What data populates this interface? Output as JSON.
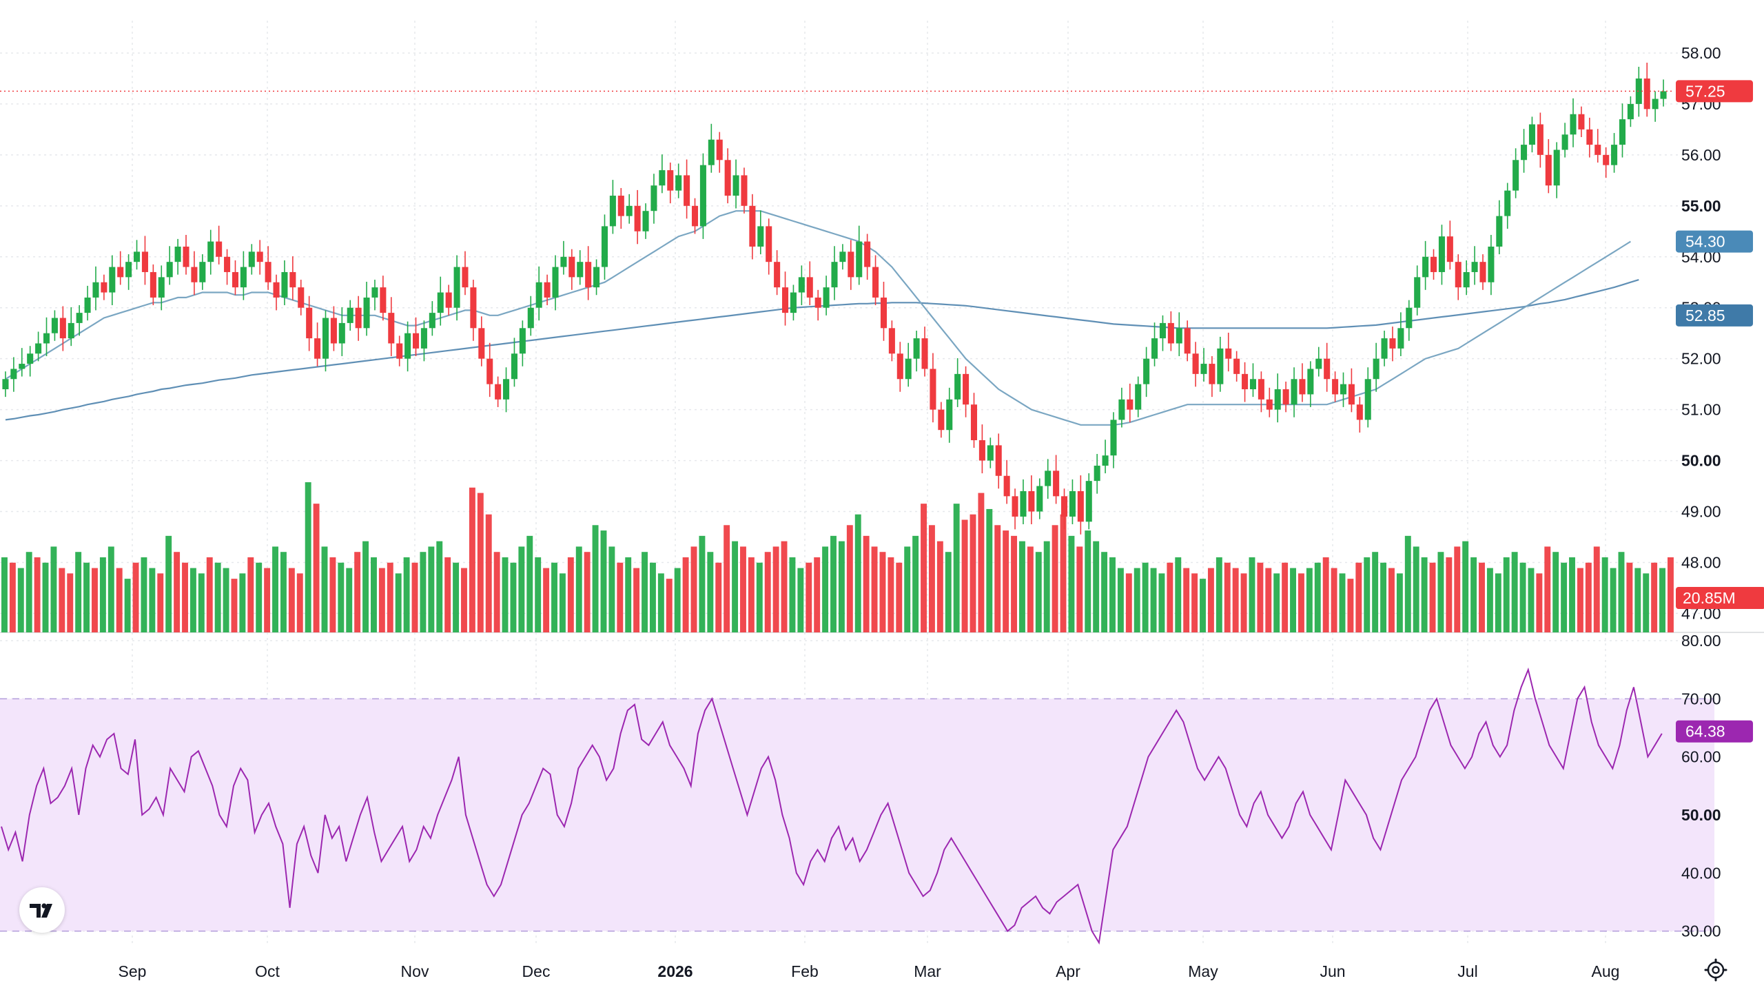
{
  "colors": {
    "up": "#26a69a",
    "up_candle": "#22ab4a",
    "down": "#ef3a3f",
    "ma_fast": "#7aa6c2",
    "ma_slow": "#5f8fb5",
    "rsi": "#9c27b0",
    "rsi_band": "#f3e5fb",
    "grid": "#e6e8ec",
    "text": "#131722",
    "price_line": "#ef3a3f"
  },
  "icons": {
    "logo": "tradingview-logo-icon",
    "settings": "gear-icon"
  },
  "chart_data": [
    {
      "type": "candlestick",
      "panel": "price",
      "y_ticks": [
        "47.00",
        "48.00",
        "49.00",
        "50.00",
        "51.00",
        "52.00",
        "53.00",
        "54.00",
        "55.00",
        "56.00",
        "57.00",
        "58.00"
      ],
      "bold_ticks": [
        "50.00",
        "55.00"
      ],
      "ylim": [
        46.6,
        58.5
      ],
      "x_tick_labels": [
        "Sep",
        "Oct",
        "Nov",
        "Dec",
        "2026",
        "Feb",
        "Mar",
        "Apr",
        "May",
        "Jun",
        "Jul",
        "Aug"
      ],
      "bold_x_ticks": [
        "2026"
      ],
      "grid": true,
      "close_series": [
        51.6,
        51.8,
        51.9,
        52.1,
        52.3,
        52.5,
        52.8,
        52.4,
        52.7,
        52.9,
        53.2,
        53.5,
        53.3,
        53.8,
        53.6,
        53.9,
        54.1,
        53.7,
        53.2,
        53.6,
        53.9,
        54.2,
        53.8,
        53.5,
        53.9,
        54.3,
        54.0,
        53.7,
        53.4,
        53.8,
        54.1,
        53.9,
        53.5,
        53.2,
        53.7,
        53.4,
        53.0,
        52.4,
        52.0,
        52.8,
        52.3,
        52.7,
        53.0,
        52.6,
        53.2,
        53.4,
        52.9,
        52.3,
        52.0,
        52.5,
        52.2,
        52.6,
        52.9,
        53.3,
        53.0,
        53.8,
        53.4,
        52.6,
        52.0,
        51.5,
        51.2,
        51.6,
        52.1,
        52.6,
        53.0,
        53.5,
        53.2,
        53.8,
        54.0,
        53.6,
        53.9,
        53.4,
        53.8,
        54.6,
        55.2,
        54.8,
        55.0,
        54.5,
        54.9,
        55.4,
        55.7,
        55.3,
        55.6,
        55.0,
        54.6,
        55.8,
        56.3,
        55.9,
        55.2,
        55.6,
        55.0,
        54.2,
        54.6,
        53.9,
        53.4,
        52.9,
        53.3,
        53.6,
        53.2,
        53.0,
        53.4,
        53.9,
        54.1,
        53.6,
        54.3,
        53.8,
        53.2,
        52.6,
        52.1,
        51.6,
        52.0,
        52.4,
        51.8,
        51.0,
        50.6,
        51.2,
        51.7,
        51.1,
        50.4,
        50.0,
        50.3,
        49.7,
        49.3,
        48.9,
        49.4,
        49.0,
        49.5,
        49.8,
        49.3,
        48.9,
        49.4,
        48.8,
        49.6,
        49.9,
        50.1,
        50.8,
        51.2,
        51.0,
        51.5,
        52.0,
        52.4,
        52.7,
        52.3,
        52.6,
        52.1,
        51.7,
        51.9,
        51.5,
        52.2,
        52.0,
        51.7,
        51.4,
        51.6,
        51.2,
        51.0,
        51.4,
        51.1,
        51.6,
        51.3,
        51.8,
        52.0,
        51.6,
        51.3,
        51.5,
        51.1,
        50.8,
        51.6,
        52.0,
        52.4,
        52.2,
        52.6,
        53.0,
        53.6,
        54.0,
        53.7,
        54.4,
        53.9,
        53.4,
        53.7,
        53.9,
        53.5,
        54.2,
        54.8,
        55.3,
        55.9,
        56.2,
        56.6,
        56.0,
        55.4,
        56.1,
        56.4,
        56.8,
        56.5,
        56.2,
        56.0,
        55.8,
        56.2,
        56.7,
        57.0,
        57.5,
        56.9,
        57.1,
        57.25
      ],
      "ma_fast_series": [
        51.6,
        51.7,
        51.8,
        51.9,
        52.0,
        52.1,
        52.2,
        52.3,
        52.4,
        52.5,
        52.6,
        52.7,
        52.8,
        52.85,
        52.9,
        52.95,
        53.0,
        53.05,
        53.1,
        53.1,
        53.15,
        53.2,
        53.2,
        53.25,
        53.3,
        53.3,
        53.3,
        53.3,
        53.25,
        53.25,
        53.3,
        53.3,
        53.3,
        53.25,
        53.2,
        53.15,
        53.1,
        53.05,
        53.0,
        52.95,
        52.9,
        52.85,
        52.85,
        52.85,
        52.85,
        52.85,
        52.8,
        52.75,
        52.7,
        52.65,
        52.65,
        52.7,
        52.75,
        52.8,
        52.85,
        52.9,
        52.95,
        52.95,
        52.9,
        52.85,
        52.85,
        52.9,
        52.95,
        53.0,
        53.05,
        53.1,
        53.15,
        53.2,
        53.25,
        53.3,
        53.35,
        53.4,
        53.45,
        53.5,
        53.6,
        53.7,
        53.8,
        53.9,
        54.0,
        54.1,
        54.2,
        54.3,
        54.4,
        54.45,
        54.5,
        54.6,
        54.7,
        54.8,
        54.85,
        54.9,
        54.9,
        54.9,
        54.9,
        54.85,
        54.8,
        54.75,
        54.7,
        54.65,
        54.6,
        54.55,
        54.5,
        54.45,
        54.4,
        54.35,
        54.3,
        54.2,
        54.1,
        53.95,
        53.8,
        53.6,
        53.4,
        53.2,
        53.0,
        52.8,
        52.6,
        52.4,
        52.2,
        52.0,
        51.85,
        51.7,
        51.55,
        51.4,
        51.3,
        51.2,
        51.1,
        51.0,
        50.95,
        50.9,
        50.85,
        50.8,
        50.75,
        50.7,
        50.7,
        50.7,
        50.7,
        50.7,
        50.72,
        50.75,
        50.8,
        50.85,
        50.9,
        50.95,
        51.0,
        51.05,
        51.1,
        51.1,
        51.1,
        51.1,
        51.1,
        51.1,
        51.1,
        51.1,
        51.1,
        51.1,
        51.1,
        51.1,
        51.1,
        51.1,
        51.1,
        51.1,
        51.1,
        51.1,
        51.15,
        51.2,
        51.25,
        51.3,
        51.35,
        51.4,
        51.5,
        51.6,
        51.7,
        51.8,
        51.9,
        52.0,
        52.05,
        52.1,
        52.15,
        52.2,
        52.3,
        52.4,
        52.5,
        52.6,
        52.7,
        52.8,
        52.9,
        53.0,
        53.1,
        53.2,
        53.3,
        53.4,
        53.5,
        53.6,
        53.7,
        53.8,
        53.9,
        54.0,
        54.1,
        54.2,
        54.3
      ],
      "ma_slow_series": [
        50.8,
        50.82,
        50.85,
        50.88,
        50.9,
        50.93,
        50.96,
        51.0,
        51.03,
        51.06,
        51.1,
        51.13,
        51.16,
        51.2,
        51.23,
        51.26,
        51.3,
        51.33,
        51.36,
        51.4,
        51.42,
        51.45,
        51.48,
        51.5,
        51.52,
        51.55,
        51.58,
        51.6,
        51.62,
        51.65,
        51.68,
        51.7,
        51.72,
        51.74,
        51.76,
        51.78,
        51.8,
        51.82,
        51.84,
        51.86,
        51.88,
        51.9,
        51.92,
        51.94,
        51.96,
        51.98,
        52.0,
        52.02,
        52.04,
        52.06,
        52.08,
        52.1,
        52.12,
        52.14,
        52.16,
        52.18,
        52.2,
        52.22,
        52.24,
        52.26,
        52.28,
        52.3,
        52.32,
        52.34,
        52.36,
        52.38,
        52.4,
        52.42,
        52.44,
        52.46,
        52.48,
        52.5,
        52.52,
        52.54,
        52.56,
        52.58,
        52.6,
        52.62,
        52.64,
        52.66,
        52.68,
        52.7,
        52.72,
        52.74,
        52.76,
        52.78,
        52.8,
        52.82,
        52.84,
        52.86,
        52.88,
        52.9,
        52.92,
        52.94,
        52.96,
        52.98,
        53.0,
        53.01,
        53.02,
        53.03,
        53.04,
        53.05,
        53.06,
        53.07,
        53.08,
        53.08,
        53.09,
        53.09,
        53.1,
        53.1,
        53.1,
        53.1,
        53.09,
        53.08,
        53.07,
        53.06,
        53.05,
        53.04,
        53.02,
        53.0,
        52.98,
        52.96,
        52.94,
        52.92,
        52.9,
        52.88,
        52.86,
        52.84,
        52.82,
        52.8,
        52.78,
        52.76,
        52.74,
        52.72,
        52.7,
        52.68,
        52.67,
        52.66,
        52.65,
        52.64,
        52.63,
        52.62,
        52.61,
        52.6,
        52.6,
        52.6,
        52.6,
        52.6,
        52.6,
        52.6,
        52.6,
        52.6,
        52.6,
        52.6,
        52.6,
        52.6,
        52.6,
        52.6,
        52.6,
        52.6,
        52.6,
        52.6,
        52.61,
        52.62,
        52.63,
        52.64,
        52.65,
        52.66,
        52.68,
        52.7,
        52.72,
        52.74,
        52.76,
        52.78,
        52.8,
        52.82,
        52.84,
        52.86,
        52.88,
        52.9,
        52.92,
        52.94,
        52.96,
        52.98,
        53.0,
        53.02,
        53.05,
        53.08,
        53.1,
        53.13,
        53.16,
        53.2,
        53.24,
        53.28,
        53.32,
        53.36,
        53.4,
        53.45,
        53.5,
        53.55
      ],
      "last_price": "57.25",
      "ma_fast_last": "54.30",
      "ma_slow_last": "52.85"
    },
    {
      "type": "bar",
      "panel": "volume",
      "last_volume": "20.85M",
      "series_note": "",
      "values": [
        14,
        13,
        12,
        15,
        14,
        13,
        16,
        12,
        11,
        15,
        13,
        12,
        14,
        16,
        12,
        10,
        13,
        14,
        12,
        11,
        18,
        15,
        13,
        12,
        11,
        14,
        13,
        12,
        10,
        11,
        14,
        13,
        12,
        16,
        15,
        12,
        11,
        28,
        24,
        16,
        14,
        13,
        12,
        15,
        17,
        14,
        12,
        13,
        11,
        14,
        13,
        15,
        16,
        17,
        14,
        13,
        12,
        27,
        26,
        22,
        15,
        14,
        13,
        16,
        18,
        14,
        12,
        13,
        11,
        14,
        16,
        15,
        20,
        19,
        16,
        13,
        14,
        12,
        15,
        13,
        11,
        10,
        12,
        14,
        16,
        18,
        15,
        13,
        20,
        17,
        16,
        14,
        13,
        15,
        16,
        17,
        14,
        12,
        13,
        14,
        16,
        18,
        17,
        20,
        22,
        18,
        16,
        15,
        14,
        13,
        16,
        18,
        24,
        20,
        17,
        15,
        24,
        21,
        22,
        26,
        23,
        20,
        19,
        18,
        17,
        16,
        15,
        17,
        20,
        22,
        18,
        16,
        19,
        17,
        15,
        14,
        12,
        11,
        12,
        13,
        12,
        11,
        13,
        14,
        12,
        11,
        10,
        12,
        14,
        13,
        12,
        11,
        14,
        13,
        12,
        11,
        13,
        12,
        11,
        12,
        13,
        14,
        12,
        11,
        10,
        13,
        14,
        15,
        13,
        12,
        11,
        18,
        16,
        14,
        13,
        15,
        14,
        16,
        17,
        14,
        13,
        12,
        11,
        14,
        15,
        13,
        12,
        11,
        16,
        15,
        13,
        14,
        12,
        13,
        16,
        14,
        12,
        15,
        13,
        12,
        11,
        13,
        12,
        14
      ],
      "up_flags": [
        1,
        0,
        1,
        1,
        0,
        1,
        1,
        0,
        0,
        1,
        1,
        0,
        1,
        1,
        0,
        1,
        0,
        1,
        1,
        0,
        1,
        0,
        0,
        1,
        1,
        0,
        1,
        1,
        0,
        1,
        0,
        1,
        0,
        1,
        1,
        0,
        0,
        1,
        0,
        1,
        0,
        1,
        1,
        0,
        1,
        1,
        0,
        0,
        1,
        1,
        0,
        1,
        1,
        1,
        0,
        1,
        0,
        0,
        0,
        0,
        0,
        1,
        1,
        1,
        1,
        1,
        0,
        1,
        1,
        0,
        1,
        0,
        1,
        1,
        1,
        0,
        1,
        0,
        1,
        1,
        1,
        0,
        1,
        0,
        0,
        1,
        1,
        0,
        0,
        1,
        0,
        0,
        1,
        0,
        0,
        0,
        1,
        1,
        0,
        0,
        1,
        1,
        1,
        0,
        1,
        0,
        0,
        0,
        0,
        0,
        1,
        1,
        0,
        0,
        0,
        1,
        1,
        0,
        0,
        0,
        1,
        0,
        0,
        0,
        1,
        0,
        1,
        1,
        0,
        0,
        1,
        0,
        1,
        1,
        1,
        1,
        1,
        0,
        1,
        1,
        1,
        1,
        0,
        1,
        0,
        0,
        1,
        0,
        1,
        0,
        0,
        0,
        1,
        0,
        0,
        1,
        0,
        1,
        0,
        1,
        1,
        0,
        0,
        1,
        0,
        0,
        1,
        1,
        1,
        0,
        1,
        1,
        1,
        1,
        0,
        1,
        0,
        0,
        1,
        1,
        0,
        1,
        1,
        1,
        1,
        1,
        1,
        0,
        0,
        1,
        1,
        1,
        0,
        0,
        0,
        1,
        1,
        1,
        0,
        1,
        1,
        0
      ]
    },
    {
      "type": "line",
      "panel": "rsi",
      "y_ticks": [
        "30.00",
        "40.00",
        "50.00",
        "60.00",
        "70.00",
        "80.00"
      ],
      "band": [
        30,
        70
      ],
      "ylim": [
        29,
        80
      ],
      "last_value": "64.38",
      "values": [
        48,
        44,
        47,
        42,
        50,
        55,
        58,
        52,
        53,
        55,
        58,
        50,
        58,
        62,
        60,
        63,
        64,
        58,
        57,
        63,
        50,
        51,
        53,
        50,
        58,
        56,
        54,
        60,
        61,
        58,
        55,
        50,
        48,
        55,
        58,
        56,
        47,
        50,
        52,
        48,
        45,
        34,
        45,
        48,
        43,
        40,
        50,
        46,
        48,
        42,
        46,
        50,
        53,
        47,
        42,
        44,
        46,
        48,
        42,
        44,
        48,
        46,
        50,
        53,
        56,
        60,
        50,
        46,
        42,
        38,
        36,
        38,
        42,
        46,
        50,
        52,
        55,
        58,
        57,
        50,
        48,
        52,
        58,
        60,
        62,
        60,
        56,
        58,
        64,
        68,
        69,
        63,
        62,
        64,
        66,
        62,
        60,
        58,
        55,
        64,
        68,
        70,
        66,
        62,
        58,
        54,
        50,
        54,
        58,
        60,
        56,
        50,
        46,
        40,
        38,
        42,
        44,
        42,
        46,
        48,
        44,
        46,
        42,
        44,
        47,
        50,
        52,
        48,
        44,
        40,
        38,
        36,
        37,
        40,
        44,
        46,
        44,
        42,
        40,
        38,
        36,
        34,
        32,
        30,
        31,
        34,
        35,
        36,
        34,
        33,
        35,
        36,
        37,
        38,
        34,
        30,
        28,
        36,
        44,
        46,
        48,
        52,
        56,
        60,
        62,
        64,
        66,
        68,
        66,
        62,
        58,
        56,
        58,
        60,
        58,
        54,
        50,
        48,
        52,
        54,
        50,
        48,
        46,
        48,
        52,
        54,
        50,
        48,
        46,
        44,
        50,
        56,
        54,
        52,
        50,
        46,
        44,
        48,
        52,
        56,
        58,
        60,
        64,
        68,
        70,
        66,
        62,
        60,
        58,
        60,
        64,
        66,
        62,
        60,
        62,
        68,
        72,
        75,
        70,
        66,
        62,
        60,
        58,
        64,
        70,
        72,
        66,
        62,
        60,
        58,
        62,
        68,
        72,
        66,
        60,
        62,
        64
      ]
    }
  ]
}
